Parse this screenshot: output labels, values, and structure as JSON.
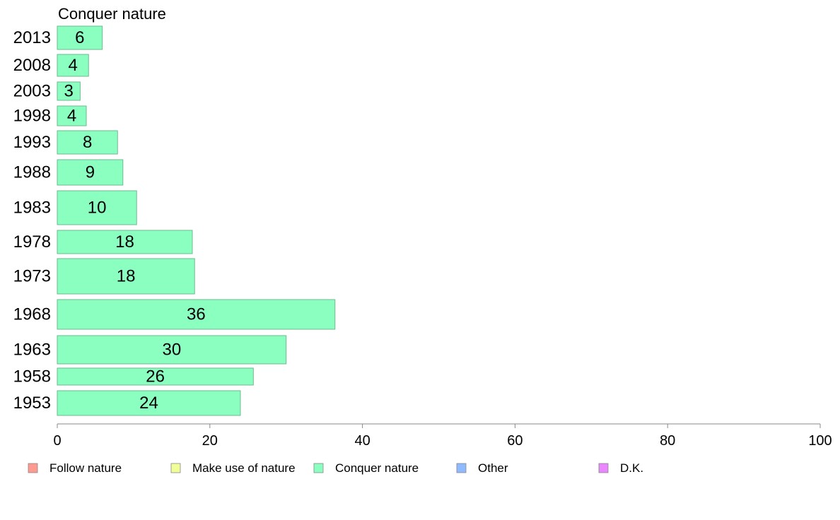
{
  "chart_data": {
    "type": "bar",
    "orientation": "horizontal",
    "title": "Conquer nature",
    "categories": [
      "2013",
      "2008",
      "2003",
      "1998",
      "1993",
      "1988",
      "1983",
      "1978",
      "1973",
      "1968",
      "1963",
      "1958",
      "1953"
    ],
    "series": [
      {
        "name": "Conquer nature",
        "values": [
          6,
          4,
          3,
          4,
          8,
          9,
          10,
          18,
          18,
          36,
          30,
          26,
          24
        ],
        "value_labels": [
          "6",
          "4",
          "3",
          "4",
          "8",
          "9",
          "10",
          "18",
          "18",
          "36",
          "30",
          "26",
          "24"
        ]
      }
    ],
    "bar_value_estimates": [
      5.9,
      4.1,
      3.0,
      3.8,
      7.9,
      8.6,
      10.4,
      17.7,
      18.0,
      36.4,
      30.0,
      25.7,
      24.0
    ],
    "xlim": [
      0,
      100
    ],
    "xticks": [
      "0",
      "20",
      "40",
      "60",
      "80",
      "100"
    ],
    "xlabel": "",
    "ylabel": "",
    "grid": false,
    "legend": {
      "position": "bottom",
      "entries": [
        {
          "label": "Follow nature",
          "color": "#ff9a90"
        },
        {
          "label": "Make use of nature",
          "color": "#f0ff98"
        },
        {
          "label": "Conquer nature",
          "color": "#8affc0"
        },
        {
          "label": "Other",
          "color": "#8fbaff"
        },
        {
          "label": "D.K.",
          "color": "#ea86ff"
        }
      ]
    },
    "bar_color": "#8affc0",
    "bar_stroke": "#6fb98f"
  }
}
